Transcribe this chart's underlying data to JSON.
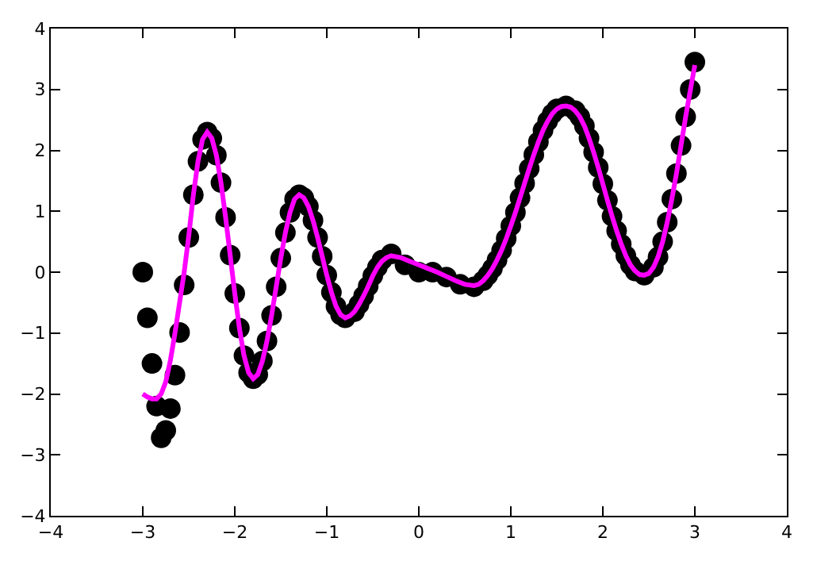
{
  "chart_data": {
    "type": "scatter",
    "xlim": [
      -4,
      4
    ],
    "ylim": [
      -4,
      4
    ],
    "xticks": [
      -4,
      -3,
      -2,
      -1,
      0,
      1,
      2,
      3,
      4
    ],
    "yticks": [
      -4,
      -3,
      -2,
      -1,
      0,
      1,
      2,
      3,
      4
    ],
    "legend": false,
    "series": [
      {
        "color": "#000000",
        "marker": "circle",
        "x": [
          -3.0,
          -2.95,
          -2.9,
          -2.85,
          -2.8,
          -2.75,
          -2.7,
          -2.65,
          -2.6,
          -2.55,
          -2.5,
          -2.45,
          -2.4,
          -2.35,
          -2.3,
          -2.25,
          -2.2,
          -2.15,
          -2.1,
          -2.05,
          -2.0,
          -1.95,
          -1.9,
          -1.85,
          -1.8,
          -1.75,
          -1.7,
          -1.65,
          -1.6,
          -1.55,
          -1.5,
          -1.45,
          -1.4,
          -1.35,
          -1.3,
          -1.25,
          -1.2,
          -1.15,
          -1.1,
          -1.05,
          -1.0,
          -0.95,
          -0.9,
          -0.85,
          -0.8,
          -0.7,
          -0.65,
          -0.6,
          -0.55,
          -0.5,
          -0.45,
          -0.4,
          -0.3,
          -0.15,
          0.0,
          0.15,
          0.3,
          0.45,
          0.6,
          0.7,
          0.75,
          0.8,
          0.85,
          0.9,
          0.95,
          1.0,
          1.05,
          1.1,
          1.15,
          1.2,
          1.25,
          1.3,
          1.35,
          1.4,
          1.45,
          1.5,
          1.6,
          1.7,
          1.75,
          1.8,
          1.85,
          1.9,
          1.95,
          2.0,
          2.05,
          2.1,
          2.15,
          2.2,
          2.25,
          2.3,
          2.35,
          2.45,
          2.55,
          2.6,
          2.65,
          2.7,
          2.75,
          2.8,
          2.85,
          2.9,
          2.95,
          3.0
        ],
        "values": [
          0.0,
          -0.75,
          -1.5,
          -2.2,
          -2.72,
          -2.6,
          -2.24,
          -1.69,
          -0.99,
          -0.21,
          0.57,
          1.27,
          1.82,
          2.18,
          2.3,
          2.2,
          1.92,
          1.47,
          0.9,
          0.28,
          -0.35,
          -0.92,
          -1.37,
          -1.65,
          -1.75,
          -1.68,
          -1.46,
          -1.13,
          -0.71,
          -0.24,
          0.23,
          0.65,
          0.98,
          1.2,
          1.27,
          1.22,
          1.08,
          0.85,
          0.57,
          0.26,
          -0.05,
          -0.33,
          -0.56,
          -0.7,
          -0.75,
          -0.65,
          -0.53,
          -0.39,
          -0.23,
          -0.06,
          0.08,
          0.2,
          0.3,
          0.12,
          0.0,
          0.0,
          -0.08,
          -0.2,
          -0.24,
          -0.14,
          -0.05,
          0.06,
          0.2,
          0.36,
          0.55,
          0.76,
          0.98,
          1.22,
          1.46,
          1.7,
          1.93,
          2.14,
          2.33,
          2.48,
          2.6,
          2.68,
          2.73,
          2.65,
          2.55,
          2.4,
          2.2,
          1.97,
          1.72,
          1.45,
          1.18,
          0.92,
          0.68,
          0.46,
          0.27,
          0.12,
          0.02,
          -0.05,
          0.08,
          0.25,
          0.5,
          0.82,
          1.2,
          1.62,
          2.08,
          2.55,
          3.0,
          3.45
        ]
      },
      {
        "type": "line",
        "color": "#ff00ff",
        "marker": "none",
        "x": [
          -3.0,
          -2.95,
          -2.9,
          -2.85,
          -2.8,
          -2.75,
          -2.7,
          -2.65,
          -2.6,
          -2.55,
          -2.5,
          -2.45,
          -2.4,
          -2.35,
          -2.3,
          -2.25,
          -2.2,
          -2.15,
          -2.1,
          -2.05,
          -2.0,
          -1.95,
          -1.9,
          -1.85,
          -1.8,
          -1.75,
          -1.7,
          -1.65,
          -1.6,
          -1.55,
          -1.5,
          -1.45,
          -1.4,
          -1.35,
          -1.3,
          -1.25,
          -1.2,
          -1.15,
          -1.1,
          -1.05,
          -1.0,
          -0.95,
          -0.9,
          -0.85,
          -0.8,
          -0.75,
          -0.7,
          -0.65,
          -0.6,
          -0.55,
          -0.5,
          -0.45,
          -0.4,
          -0.35,
          -0.3,
          -0.2,
          -0.1,
          0.0,
          0.1,
          0.2,
          0.3,
          0.4,
          0.5,
          0.6,
          0.65,
          0.7,
          0.75,
          0.8,
          0.85,
          0.9,
          0.95,
          1.0,
          1.05,
          1.1,
          1.15,
          1.2,
          1.25,
          1.3,
          1.35,
          1.4,
          1.45,
          1.5,
          1.55,
          1.6,
          1.65,
          1.7,
          1.75,
          1.8,
          1.85,
          1.9,
          1.95,
          2.0,
          2.05,
          2.1,
          2.15,
          2.2,
          2.25,
          2.3,
          2.35,
          2.4,
          2.45,
          2.5,
          2.55,
          2.6,
          2.65,
          2.7,
          2.75,
          2.8,
          2.85,
          2.9,
          2.95,
          3.0
        ],
        "values": [
          -2.0,
          -2.05,
          -2.08,
          -2.08,
          -2.0,
          -1.8,
          -1.45,
          -1.0,
          -0.5,
          0.0,
          0.6,
          1.27,
          1.82,
          2.18,
          2.3,
          2.2,
          1.92,
          1.47,
          0.9,
          0.28,
          -0.35,
          -0.92,
          -1.37,
          -1.65,
          -1.75,
          -1.68,
          -1.46,
          -1.13,
          -0.71,
          -0.24,
          0.23,
          0.65,
          0.98,
          1.2,
          1.27,
          1.22,
          1.08,
          0.85,
          0.57,
          0.26,
          -0.05,
          -0.33,
          -0.56,
          -0.7,
          -0.75,
          -0.72,
          -0.65,
          -0.53,
          -0.39,
          -0.23,
          -0.06,
          0.08,
          0.18,
          0.24,
          0.27,
          0.24,
          0.18,
          0.12,
          0.06,
          0.0,
          -0.07,
          -0.14,
          -0.2,
          -0.22,
          -0.2,
          -0.14,
          -0.05,
          0.06,
          0.2,
          0.36,
          0.55,
          0.76,
          0.98,
          1.22,
          1.46,
          1.7,
          1.93,
          2.14,
          2.33,
          2.48,
          2.6,
          2.68,
          2.72,
          2.73,
          2.71,
          2.65,
          2.55,
          2.4,
          2.2,
          1.97,
          1.72,
          1.45,
          1.18,
          0.92,
          0.68,
          0.46,
          0.27,
          0.12,
          0.02,
          -0.04,
          -0.05,
          -0.02,
          0.08,
          0.25,
          0.5,
          0.82,
          1.2,
          1.62,
          2.08,
          2.55,
          2.98,
          3.4
        ]
      }
    ]
  }
}
